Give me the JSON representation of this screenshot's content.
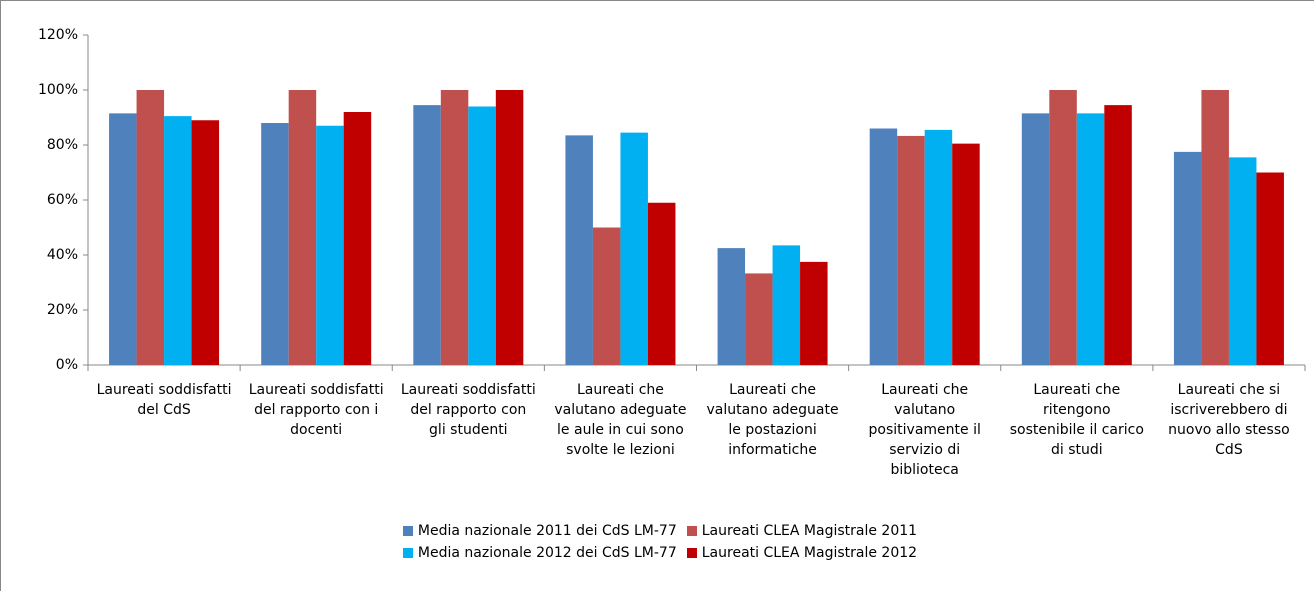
{
  "chart_data": {
    "type": "bar",
    "categories": [
      "Laureati soddisfatti del CdS",
      "Laureati soddisfatti del rapporto con i docenti",
      "Laureati soddisfatti del rapporto con gli studenti",
      "Laureati che valutano adeguate le aule in cui sono svolte le lezioni",
      "Laureati che valutano adeguate le postazioni informatiche",
      "Laureati che valutano positivamente il servizio di biblioteca",
      "Laureati che ritengono sostenibile il carico di studi",
      "Laureati che si iscriverebbero di nuovo allo stesso CdS"
    ],
    "series": [
      {
        "name": "Media nazionale 2011 dei CdS LM-77",
        "color": "#4f81bd",
        "values": [
          91.5,
          88,
          94.5,
          83.5,
          42.5,
          86,
          91.5,
          77.5
        ]
      },
      {
        "name": "Laureati CLEA Magistrale 2011",
        "color": "#c0504d",
        "values": [
          100,
          100,
          100,
          50,
          33.3,
          83.3,
          100,
          100
        ]
      },
      {
        "name": "Media nazionale 2012 dei CdS LM-77",
        "color": "#00b0f0",
        "values": [
          90.5,
          87,
          94,
          84.5,
          43.5,
          85.5,
          91.5,
          75.5
        ]
      },
      {
        "name": "Laureati CLEA Magistrale 2012",
        "color": "#c00000",
        "values": [
          89,
          92,
          100,
          59,
          37.5,
          80.5,
          94.5,
          70
        ]
      }
    ],
    "ylim": [
      0,
      120
    ],
    "yticks": [
      {
        "value": 0,
        "label": "0%"
      },
      {
        "value": 20,
        "label": "20%"
      },
      {
        "value": 40,
        "label": "40%"
      },
      {
        "value": 60,
        "label": "60%"
      },
      {
        "value": 80,
        "label": "80%"
      },
      {
        "value": 100,
        "label": "100%"
      },
      {
        "value": 120,
        "label": "120%"
      }
    ],
    "grid": false,
    "legend": "bottom"
  }
}
